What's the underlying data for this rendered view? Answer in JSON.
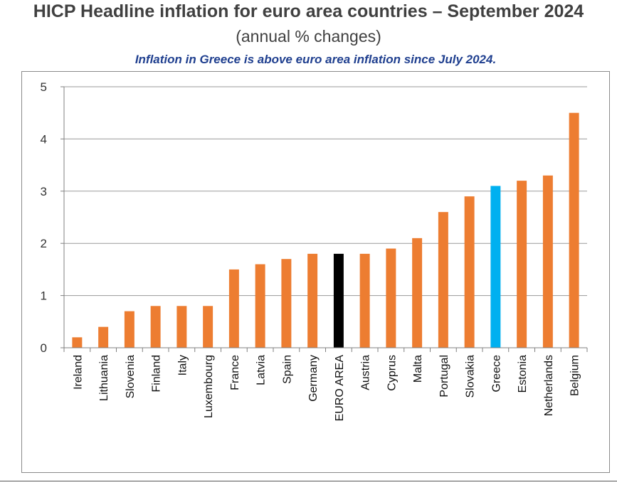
{
  "header": {
    "title": "HICP Headline inflation for euro area countries – September 2024",
    "subtitle": "(annual % changes)",
    "note": "Inflation in Greece is above euro area inflation since July 2024."
  },
  "chart_data": {
    "type": "bar",
    "title": "HICP Headline inflation for euro area countries – September 2024",
    "subtitle": "(annual % changes)",
    "xlabel": "",
    "ylabel": "",
    "ylim": [
      0,
      5
    ],
    "yticks": [
      0,
      1,
      2,
      3,
      4,
      5
    ],
    "grid": true,
    "categories": [
      "Ireland",
      "Lithuania",
      "Slovenia",
      "Finland",
      "Italy",
      "Luxembourg",
      "France",
      "Latvia",
      "Spain",
      "Germany",
      "EURO AREA",
      "Austria",
      "Cyprus",
      "Malta",
      "Portugal",
      "Slovakia",
      "Greece",
      "Estonia",
      "Netherlands",
      "Belgium"
    ],
    "values": [
      0.2,
      0.4,
      0.7,
      0.8,
      0.8,
      0.8,
      1.5,
      1.6,
      1.7,
      1.8,
      1.8,
      1.8,
      1.9,
      2.1,
      2.6,
      2.9,
      3.1,
      3.2,
      3.3,
      4.5
    ],
    "colors": {
      "default": "#ed7d31",
      "EURO AREA": "#000000",
      "Greece": "#00b0f0"
    }
  }
}
